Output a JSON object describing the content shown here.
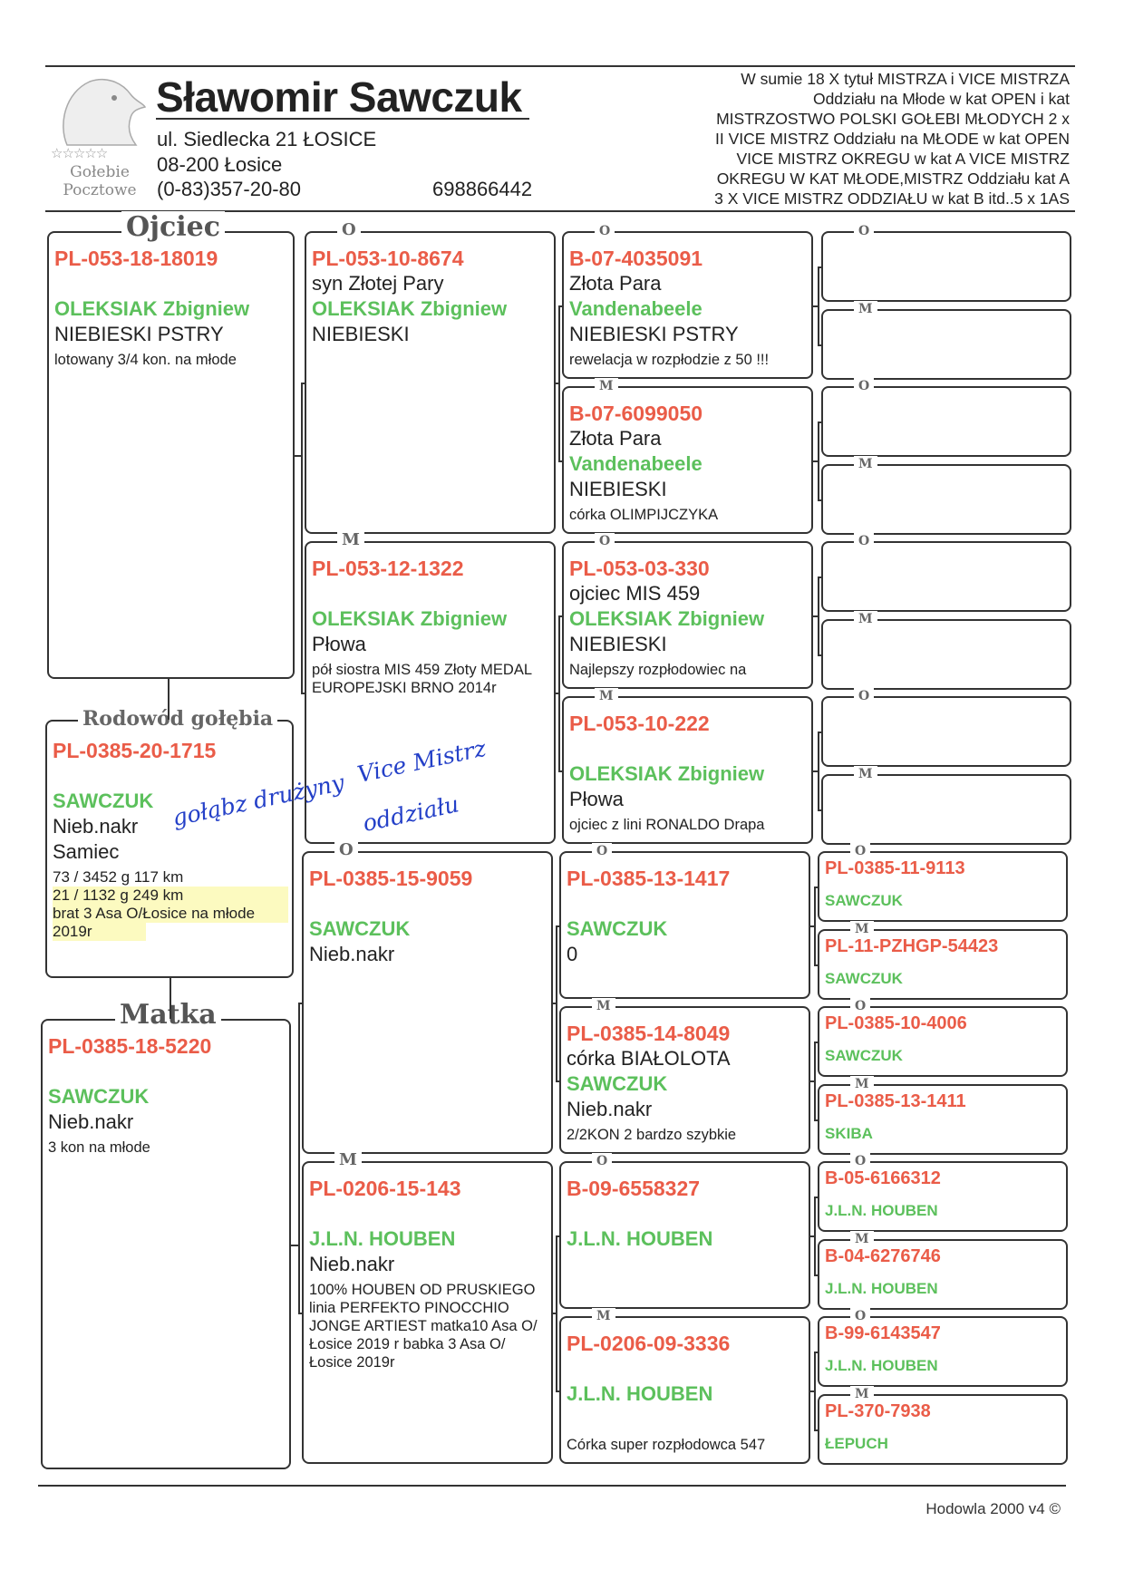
{
  "header": {
    "name": "Sławomir Sawczuk",
    "address_line1": "ul. Siedlecka 21 ŁOSICE",
    "address_line2": "08-200 Łosice",
    "phone": "(0-83)357-20-80",
    "mobile": "698866442",
    "logo": {
      "stars": "☆☆☆☆☆",
      "line1": "Gołebie",
      "line2": "Pocztowe"
    },
    "titles": [
      "W sumie 18 X tytuł MISTRZA i VICE MISTRZA",
      "Oddziału na Młode w kat OPEN i kat",
      "MISTRZOSTWO POLSKI GOŁEBI MŁODYCH  2 x",
      "II VICE MISTRZ Oddziału na MŁODE w kat OPEN",
      "VICE MISTRZ OKREGU w kat A  VICE MISTRZ",
      "OKREGU W KAT MŁODE,MISTRZ Oddziału kat A",
      "3 X VICE MISTRZ ODDZIAŁU w kat B itd..5 x 1AS"
    ]
  },
  "subject": {
    "label": "Rodowód gołębia",
    "ring": "PL-0385-20-1715",
    "breeder": "SAWCZUK",
    "color": "Nieb.nakr",
    "sex": "Samiec",
    "notes": [
      "73 / 3452 g 117 km",
      "21 / 1132 g 249 km",
      "brat 3 Asa O/Łosice na młode",
      "2019r"
    ],
    "handwritten": [
      "gołąbz drużyny",
      "Vice Mistrz",
      "oddziału"
    ]
  },
  "parents": [
    {
      "label": "Ojciec",
      "ring": "PL-053-18-18019",
      "subtitle": "",
      "breeder": "OLEKSIAK Zbigniew",
      "color": "NIEBIESKI  PSTRY",
      "notes": "lotowany 3/4 kon. na młode"
    },
    {
      "label": "Matka",
      "ring": "PL-0385-18-5220",
      "subtitle": "",
      "breeder": "SAWCZUK",
      "color": "Nieb.nakr",
      "notes": "3 kon na młode"
    }
  ],
  "grandparents": [
    {
      "label": "O",
      "ring": "PL-053-10-8674",
      "subtitle": "syn Złotej Pary",
      "breeder": "OLEKSIAK Zbigniew",
      "color": "NIEBIESKI",
      "notes": ""
    },
    {
      "label": "M",
      "ring": "PL-053-12-1322",
      "subtitle": "",
      "breeder": "OLEKSIAK Zbigniew",
      "color": "Płowa",
      "notes": "pół siostra MIS 459 Złoty MEDAL EUROPEJSKI BRNO 2014r"
    },
    {
      "label": "O",
      "ring": "PL-0385-15-9059",
      "subtitle": "",
      "breeder": "SAWCZUK",
      "color": "Nieb.nakr",
      "notes": ""
    },
    {
      "label": "M",
      "ring": "PL-0206-15-143",
      "subtitle": "",
      "breeder": "J.L.N. HOUBEN",
      "color": "Nieb.nakr",
      "notes": "100% HOUBEN OD PRUSKIEGO linia PERFEKTO PINOCCHIO JONGE ARTIEST matka10 Asa O/Łosice 2019 r babka 3 Asa O/Łosice 2019r"
    }
  ],
  "great_grandparents": [
    {
      "label": "O",
      "ring": "B-07-4035091",
      "subtitle": "Złota Para",
      "breeder": "Vandenabeele",
      "color": "NIEBIESKI  PSTRY",
      "notes": "rewelacja w rozpłodzie z 50 !!!"
    },
    {
      "label": "M",
      "ring": "B-07-6099050",
      "subtitle": "Złota Para",
      "breeder": "Vandenabeele",
      "color": "NIEBIESKI",
      "notes": "córka OLIMPIJCZYKA"
    },
    {
      "label": "O",
      "ring": "PL-053-03-330",
      "subtitle": "ojciec MIS 459",
      "breeder": "OLEKSIAK Zbigniew",
      "color": "NIEBIESKI",
      "notes": "Najlepszy rozpłodowiec na"
    },
    {
      "label": "M",
      "ring": "PL-053-10-222",
      "subtitle": "",
      "breeder": "OLEKSIAK Zbigniew",
      "color": "Płowa",
      "notes": "ojciec z lini RONALDO Drapa"
    },
    {
      "label": "O",
      "ring": "PL-0385-13-1417",
      "subtitle": "",
      "breeder": "SAWCZUK",
      "color": "0",
      "notes": ""
    },
    {
      "label": "M",
      "ring": "PL-0385-14-8049",
      "subtitle": "córka BIAŁOLOTA",
      "breeder": "SAWCZUK",
      "color": "Nieb.nakr",
      "notes": "2/2KON  2 bardzo szybkie"
    },
    {
      "label": "O",
      "ring": "B-09-6558327",
      "subtitle": "",
      "breeder": "J.L.N. HOUBEN",
      "color": "",
      "notes": ""
    },
    {
      "label": "M",
      "ring": "PL-0206-09-3336",
      "subtitle": "",
      "breeder": "J.L.N. HOUBEN",
      "color": "",
      "notes": "Córka super rozpłodowca 547"
    }
  ],
  "great_great_grandparents": [
    {
      "label": "O",
      "ring": "",
      "breeder": ""
    },
    {
      "label": "M",
      "ring": "",
      "breeder": ""
    },
    {
      "label": "O",
      "ring": "",
      "breeder": ""
    },
    {
      "label": "M",
      "ring": "",
      "breeder": ""
    },
    {
      "label": "O",
      "ring": "",
      "breeder": ""
    },
    {
      "label": "M",
      "ring": "",
      "breeder": ""
    },
    {
      "label": "O",
      "ring": "",
      "breeder": ""
    },
    {
      "label": "M",
      "ring": "",
      "breeder": ""
    },
    {
      "label": "O",
      "ring": "PL-0385-11-9113",
      "breeder": "SAWCZUK"
    },
    {
      "label": "M",
      "ring": "PL-11-PZHGP-54423",
      "breeder": "SAWCZUK"
    },
    {
      "label": "O",
      "ring": "PL-0385-10-4006",
      "breeder": "SAWCZUK"
    },
    {
      "label": "M",
      "ring": "PL-0385-13-1411",
      "breeder": "SKIBA"
    },
    {
      "label": "O",
      "ring": "B-05-6166312",
      "breeder": "J.L.N. HOUBEN"
    },
    {
      "label": "M",
      "ring": "B-04-6276746",
      "breeder": "J.L.N. HOUBEN"
    },
    {
      "label": "O",
      "ring": "B-99-6143547",
      "breeder": "J.L.N. HOUBEN"
    },
    {
      "label": "M",
      "ring": "PL-370-7938",
      "breeder": "ŁEPUCH"
    }
  ],
  "footer": "Hodowla 2000 v4 ©",
  "colors": {
    "ring": "#ea5c48",
    "breeder": "#5cc05c",
    "handwriting": "#2440c8",
    "highlight": "#faf58c"
  }
}
